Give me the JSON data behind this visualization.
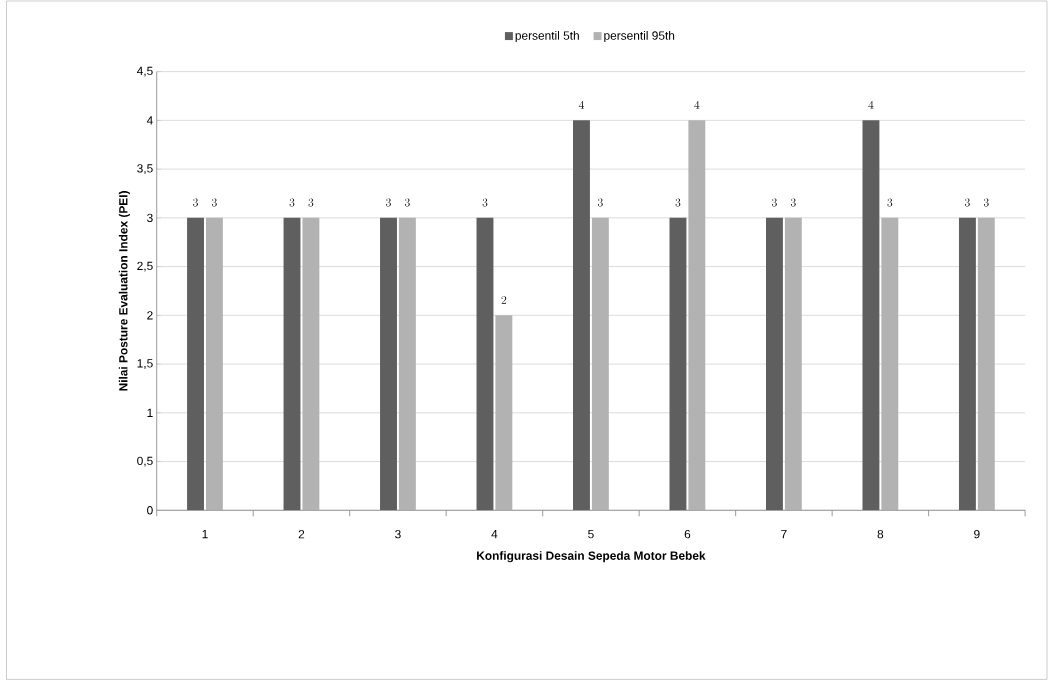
{
  "chart_data": {
    "type": "bar",
    "xlabel": "Konfigurasi Desain Sepeda Motor Bebek",
    "ylabel": "Nilai Posture Evaluation Index (PEI)",
    "categories": [
      "1",
      "2",
      "3",
      "4",
      "5",
      "6",
      "7",
      "8",
      "9"
    ],
    "series": [
      {
        "name": "persentil 5th",
        "color": "#5f5f5f",
        "values": [
          3,
          3,
          3,
          3,
          4,
          3,
          3,
          4,
          3
        ]
      },
      {
        "name": "persentil 95th",
        "color": "#b2b2b2",
        "values": [
          3,
          3,
          3,
          2,
          3,
          4,
          3,
          3,
          3
        ]
      }
    ],
    "ylim": [
      0,
      4.5
    ],
    "yticks": [
      0,
      {
        "value": 0.5,
        "label": "0,5"
      },
      1,
      {
        "value": 1.5,
        "label": "1,5"
      },
      2,
      {
        "value": 2.5,
        "label": "2,5"
      },
      3,
      {
        "value": 3.5,
        "label": "3,5"
      },
      4,
      {
        "value": 4.5,
        "label": "4,5"
      }
    ],
    "grid": "y",
    "legend": "top",
    "data_labels": true
  }
}
